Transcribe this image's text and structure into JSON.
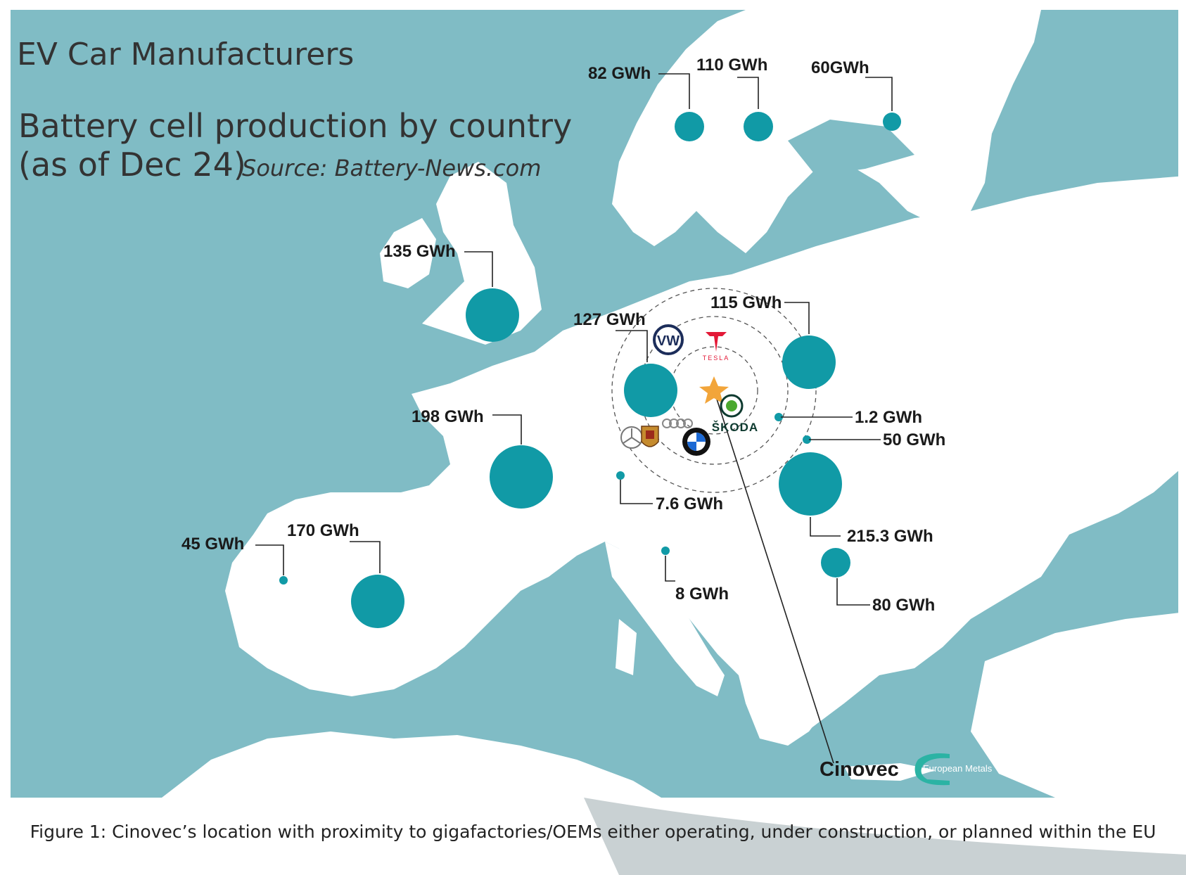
{
  "title": "EV Car Manufacturers",
  "subtitle_line1": "Battery cell production by country",
  "subtitle_line2": "(as of Dec 24)",
  "source": "Source: Battery-News.com",
  "colors": {
    "sea": "#80bcc5",
    "land": "#ffffff",
    "bubble": "#119aa6",
    "star": "#f2a53a"
  },
  "production": {
    "norway": "82 GWh",
    "sweden": "110 GWh",
    "finland": "60GWh",
    "uk": "135 GWh",
    "germany": "127 GWh",
    "poland": "115 GWh",
    "france": "198 GWh",
    "czech": "1.2 GWh",
    "slovakia": "50 GWh",
    "hungary": "215.3 GWh",
    "switzerland": "7.6 GWh",
    "italy": "8 GWh",
    "serbia": "80 GWh",
    "portugal": "45 GWh",
    "spain": "170 GWh"
  },
  "logos": {
    "tesla": "TESLA",
    "skoda": "ŠKODA",
    "european_metals": "European Metals",
    "vw": "VW",
    "icons": [
      "vw-logo-icon",
      "tesla-logo-icon",
      "skoda-logo-icon",
      "audi-logo-icon",
      "mercedes-logo-icon",
      "porsche-logo-icon",
      "bmw-logo-icon",
      "star-icon"
    ]
  },
  "location": "Cinovec",
  "caption": "Figure 1: Cinovec’s location with proximity to gigafactories/OEMs either operating, under construction, or planned within the EU"
}
